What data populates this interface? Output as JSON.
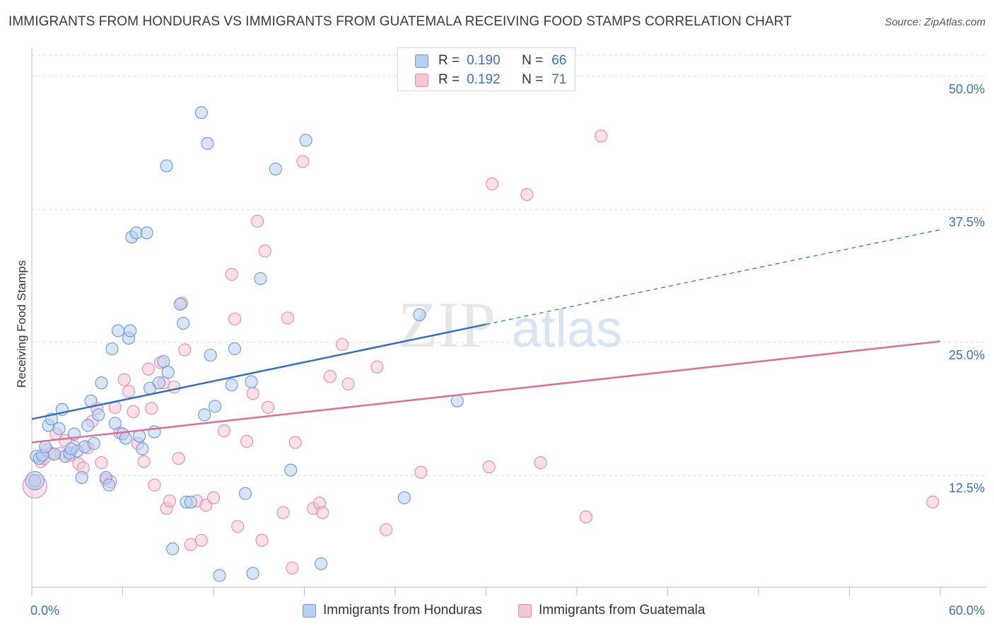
{
  "title": "IMMIGRANTS FROM HONDURAS VS IMMIGRANTS FROM GUATEMALA RECEIVING FOOD STAMPS CORRELATION CHART",
  "source": "Source: ZipAtlas.com",
  "watermark": {
    "zip": "ZIP",
    "atlas": "atlas"
  },
  "colors": {
    "honduras_fill": "#b5d0f2",
    "honduras_stroke": "#6c9ad6",
    "honduras_line": "#2a6cc8",
    "guatemala_fill": "#f9c6d6",
    "guatemala_stroke": "#e88aa8",
    "guatemala_line": "#e06a94",
    "tick_label": "#3a6fc4"
  },
  "legend_box": {
    "rows": [
      {
        "r_label": "R =",
        "r_value": "0.190",
        "n_label": "N =",
        "n_value": "66"
      },
      {
        "r_label": "R =",
        "r_value": "0.192",
        "n_label": "N =",
        "n_value": "71"
      }
    ]
  },
  "legend_bottom": [
    "Immigrants from Honduras",
    "Immigrants from Guatemala"
  ],
  "chart_data": {
    "type": "scatter",
    "title": "IMMIGRANTS FROM HONDURAS VS IMMIGRANTS FROM GUATEMALA RECEIVING FOOD STAMPS CORRELATION CHART",
    "xlabel": "",
    "ylabel": "Receiving Food Stamps",
    "xlim": [
      0,
      60
    ],
    "ylim": [
      2,
      52
    ],
    "x_tick_labels": [
      "0.0%",
      "60.0%"
    ],
    "y_ticks": [
      12.5,
      25.0,
      37.5,
      50.0
    ],
    "y_tick_labels": [
      "12.5%",
      "25.0%",
      "37.5%",
      "50.0%"
    ],
    "grid": true,
    "legend_position": "top-center",
    "series": [
      {
        "name": "Immigrants from Honduras",
        "R": 0.19,
        "N": 66,
        "trend": {
          "x0": 0,
          "y0": 17.8,
          "x1": 30,
          "y1": 26.7,
          "dash_to_x": 60,
          "dash_to_y": 35.6
        },
        "points": [
          [
            0.3,
            14.3
          ],
          [
            0.5,
            14.1
          ],
          [
            0.7,
            14.4
          ],
          [
            0.9,
            15.2
          ],
          [
            1.1,
            17.2
          ],
          [
            1.3,
            17.8
          ],
          [
            1.8,
            16.9
          ],
          [
            2.0,
            18.7
          ],
          [
            2.2,
            14.3
          ],
          [
            2.5,
            14.6
          ],
          [
            2.8,
            16.4
          ],
          [
            3.0,
            14.8
          ],
          [
            3.3,
            12.3
          ],
          [
            3.5,
            15.2
          ],
          [
            3.7,
            17.2
          ],
          [
            3.9,
            19.5
          ],
          [
            4.1,
            15.5
          ],
          [
            4.4,
            18.2
          ],
          [
            4.6,
            21.2
          ],
          [
            4.9,
            12.3
          ],
          [
            5.1,
            11.6
          ],
          [
            5.3,
            24.4
          ],
          [
            5.5,
            17.4
          ],
          [
            5.7,
            26.1
          ],
          [
            6.0,
            16.4
          ],
          [
            6.2,
            16.0
          ],
          [
            6.4,
            25.4
          ],
          [
            6.5,
            26.1
          ],
          [
            6.6,
            34.9
          ],
          [
            6.9,
            35.3
          ],
          [
            7.1,
            16.2
          ],
          [
            7.3,
            15.0
          ],
          [
            7.6,
            35.3
          ],
          [
            7.8,
            20.7
          ],
          [
            8.1,
            16.6
          ],
          [
            8.4,
            21.2
          ],
          [
            8.7,
            23.2
          ],
          [
            9.0,
            22.2
          ],
          [
            9.3,
            5.6
          ],
          [
            9.8,
            28.6
          ],
          [
            10.0,
            26.8
          ],
          [
            10.2,
            10.0
          ],
          [
            10.5,
            10.0
          ],
          [
            11.2,
            46.6
          ],
          [
            11.4,
            18.2
          ],
          [
            11.6,
            43.7
          ],
          [
            11.8,
            23.8
          ],
          [
            12.1,
            19.0
          ],
          [
            12.4,
            3.1
          ],
          [
            13.2,
            21.0
          ],
          [
            13.4,
            24.4
          ],
          [
            14.1,
            10.8
          ],
          [
            14.5,
            21.3
          ],
          [
            14.6,
            3.3
          ],
          [
            15.1,
            31.0
          ],
          [
            16.1,
            41.3
          ],
          [
            17.1,
            13.0
          ],
          [
            18.1,
            44.0
          ],
          [
            19.1,
            4.2
          ],
          [
            24.6,
            10.4
          ],
          [
            25.6,
            27.6
          ],
          [
            28.1,
            19.5
          ],
          [
            0.2,
            12.0
          ],
          [
            1.5,
            14.5
          ],
          [
            8.9,
            41.6
          ],
          [
            2.6,
            15.0
          ]
        ]
      },
      {
        "name": "Immigrants from Guatemala",
        "R": 0.192,
        "N": 71,
        "trend": {
          "x0": 0,
          "y0": 15.6,
          "x1": 60,
          "y1": 25.1
        },
        "points": [
          [
            0.2,
            11.8
          ],
          [
            0.6,
            13.8
          ],
          [
            0.8,
            14.1
          ],
          [
            1.0,
            14.9
          ],
          [
            1.3,
            14.6
          ],
          [
            1.6,
            16.4
          ],
          [
            1.9,
            14.6
          ],
          [
            2.2,
            15.8
          ],
          [
            2.5,
            14.4
          ],
          [
            2.8,
            15.2
          ],
          [
            3.1,
            13.6
          ],
          [
            3.4,
            13.2
          ],
          [
            3.7,
            15.1
          ],
          [
            4.0,
            17.6
          ],
          [
            4.3,
            18.8
          ],
          [
            4.6,
            13.7
          ],
          [
            4.9,
            12.1
          ],
          [
            5.2,
            11.9
          ],
          [
            5.5,
            18.9
          ],
          [
            5.8,
            16.5
          ],
          [
            6.1,
            21.5
          ],
          [
            6.4,
            20.4
          ],
          [
            6.7,
            18.5
          ],
          [
            7.0,
            15.5
          ],
          [
            7.4,
            13.8
          ],
          [
            7.7,
            22.5
          ],
          [
            7.9,
            18.8
          ],
          [
            8.1,
            11.6
          ],
          [
            8.5,
            23.1
          ],
          [
            8.7,
            21.2
          ],
          [
            8.9,
            9.4
          ],
          [
            9.1,
            10.1
          ],
          [
            9.4,
            20.8
          ],
          [
            9.7,
            14.1
          ],
          [
            9.9,
            28.7
          ],
          [
            10.1,
            24.3
          ],
          [
            10.5,
            6.0
          ],
          [
            10.9,
            10.1
          ],
          [
            11.2,
            6.4
          ],
          [
            11.5,
            9.7
          ],
          [
            12.0,
            10.4
          ],
          [
            12.7,
            16.7
          ],
          [
            13.2,
            31.4
          ],
          [
            13.4,
            27.2
          ],
          [
            13.6,
            7.7
          ],
          [
            14.2,
            15.7
          ],
          [
            14.6,
            20.2
          ],
          [
            14.9,
            36.4
          ],
          [
            15.2,
            6.4
          ],
          [
            15.4,
            33.6
          ],
          [
            15.6,
            18.9
          ],
          [
            16.6,
            9.0
          ],
          [
            16.9,
            27.3
          ],
          [
            17.2,
            3.8
          ],
          [
            17.4,
            15.6
          ],
          [
            17.9,
            42.0
          ],
          [
            18.6,
            9.4
          ],
          [
            19.0,
            9.9
          ],
          [
            19.2,
            9.0
          ],
          [
            19.7,
            21.8
          ],
          [
            20.5,
            24.8
          ],
          [
            20.9,
            21.1
          ],
          [
            22.8,
            22.7
          ],
          [
            23.4,
            7.4
          ],
          [
            25.7,
            12.8
          ],
          [
            30.2,
            13.3
          ],
          [
            30.4,
            39.9
          ],
          [
            32.7,
            38.9
          ],
          [
            33.6,
            13.7
          ],
          [
            36.6,
            8.6
          ],
          [
            37.6,
            44.4
          ]
        ],
        "extra_points": [
          [
            59.5,
            10.0
          ]
        ]
      }
    ]
  }
}
